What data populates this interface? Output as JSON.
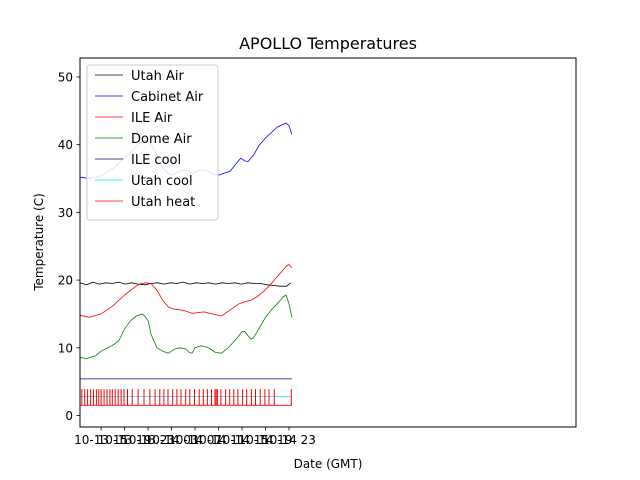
{
  "chart_data": {
    "type": "line",
    "title": "APOLLO Temperatures",
    "xlabel": "Date (GMT)",
    "ylabel": "Temperature (C)",
    "x_unit": "hours since 10-13 00:00 GMT",
    "xlim": [
      11.4,
      95.9
    ],
    "ylim": [
      -1.7,
      52.8
    ],
    "yticks": [
      0,
      10,
      20,
      30,
      40,
      50
    ],
    "xticks": [
      {
        "label": "10-13 15",
        "value": 15
      },
      {
        "label": "10-13 19",
        "value": 19
      },
      {
        "label": "10-13 23",
        "value": 23
      },
      {
        "label": "10-14 03",
        "value": 27
      },
      {
        "label": "10-14 07",
        "value": 31
      },
      {
        "label": "10-14 11",
        "value": 35
      },
      {
        "label": "10-14 15",
        "value": 39
      },
      {
        "label": "10-14 19",
        "value": 43
      },
      {
        "label": "10-14 23",
        "value": 47
      }
    ],
    "legend_position": "top-left",
    "series": [
      {
        "name": "Utah Air",
        "color": "#000000",
        "x": [
          11.4,
          12.5,
          13.6,
          14.7,
          15.8,
          16.9,
          18.0,
          19.1,
          20.2,
          21.3,
          22.4,
          23.5,
          24.6,
          25.7,
          26.8,
          27.9,
          29.0,
          30.1,
          31.2,
          32.3,
          33.4,
          34.5,
          35.6,
          36.7,
          37.8,
          38.9,
          40.0,
          41.1,
          42.2,
          43.3,
          44.4,
          45.5,
          46.6,
          47.3
        ],
        "y": [
          19.6,
          19.3,
          19.7,
          19.4,
          19.6,
          19.5,
          19.7,
          19.4,
          19.6,
          19.4,
          19.3,
          19.5,
          19.6,
          19.4,
          19.6,
          19.5,
          19.7,
          19.4,
          19.6,
          19.5,
          19.6,
          19.4,
          19.6,
          19.5,
          19.6,
          19.4,
          19.6,
          19.5,
          19.5,
          19.3,
          19.2,
          19.1,
          19.1,
          19.6
        ]
      },
      {
        "name": "Cabinet Air",
        "color": "#0000ff",
        "x": [
          11.4,
          13.0,
          15.0,
          17.0,
          19.0,
          20.5,
          21.5,
          22.5,
          23.5,
          24.5,
          25.5,
          26.5,
          27.0,
          28.0,
          29.0,
          30.0,
          30.5,
          31.0,
          32.0,
          33.0,
          34.0,
          35.0,
          36.0,
          37.0,
          38.0,
          38.8,
          39.5,
          40.0,
          41.0,
          42.0,
          43.0,
          44.0,
          45.0,
          46.0,
          46.5,
          47.0,
          47.5
        ],
        "y": [
          35.2,
          35.0,
          35.4,
          36.5,
          38.0,
          39.3,
          40.2,
          40.7,
          40.1,
          38.5,
          36.5,
          35.7,
          35.5,
          35.9,
          36.2,
          36.1,
          35.7,
          36.0,
          36.3,
          36.2,
          35.6,
          35.5,
          35.8,
          36.1,
          37.2,
          38.0,
          37.6,
          37.5,
          38.5,
          40.0,
          41.0,
          41.8,
          42.6,
          43.0,
          43.2,
          42.8,
          41.5
        ]
      },
      {
        "name": "ILE Air",
        "color": "#ff0000",
        "x": [
          11.4,
          13.0,
          15.0,
          17.0,
          19.0,
          20.5,
          21.5,
          22.5,
          23.5,
          24.5,
          25.5,
          26.5,
          27.5,
          28.5,
          29.5,
          30.5,
          31.5,
          32.5,
          33.5,
          34.5,
          35.5,
          36.5,
          37.5,
          38.5,
          39.5,
          40.5,
          41.5,
          42.5,
          43.5,
          44.5,
          45.5,
          46.5,
          47.0,
          47.5
        ],
        "y": [
          14.8,
          14.5,
          15.0,
          16.2,
          17.8,
          18.8,
          19.4,
          19.6,
          19.5,
          18.5,
          17.0,
          16.0,
          15.7,
          15.6,
          15.4,
          15.1,
          15.2,
          15.3,
          15.1,
          14.9,
          14.7,
          15.3,
          15.9,
          16.5,
          16.8,
          17.0,
          17.5,
          18.2,
          19.0,
          20.0,
          21.0,
          22.0,
          22.3,
          21.8
        ]
      },
      {
        "name": "Dome Air",
        "color": "#008000",
        "x": [
          11.4,
          12.5,
          14.0,
          15.0,
          17.0,
          18.0,
          19.0,
          20.0,
          21.0,
          22.0,
          22.5,
          23.0,
          23.5,
          24.5,
          25.5,
          26.5,
          27.5,
          28.5,
          29.5,
          30.0,
          30.5,
          31.0,
          32.0,
          33.0,
          33.5,
          34.5,
          35.5,
          36.5,
          37.5,
          38.5,
          39.0,
          39.5,
          40.0,
          40.5,
          41.0,
          42.0,
          43.0,
          44.0,
          45.0,
          46.0,
          46.5,
          47.0,
          47.5
        ],
        "y": [
          8.6,
          8.4,
          8.8,
          9.5,
          10.4,
          11.0,
          12.8,
          14.0,
          14.7,
          15.0,
          14.6,
          14.0,
          12.0,
          10.0,
          9.5,
          9.2,
          9.8,
          10.0,
          9.8,
          9.3,
          9.2,
          10.0,
          10.3,
          10.1,
          9.9,
          9.3,
          9.2,
          9.9,
          10.8,
          11.8,
          12.4,
          12.4,
          11.8,
          11.3,
          11.5,
          13.0,
          14.5,
          15.6,
          16.5,
          17.5,
          17.8,
          16.5,
          14.5
        ]
      },
      {
        "name": "ILE cool",
        "color": "#000080",
        "x": [
          11.4,
          47.5
        ],
        "y": [
          5.4,
          5.4
        ]
      },
      {
        "name": "Utah cool",
        "color": "#00e5ff",
        "x": [
          11.4,
          47.5
        ],
        "y": [
          2.8,
          2.8
        ]
      },
      {
        "name": "Utah heat",
        "color": "#ff0000",
        "x": [
          11.4,
          47.5
        ],
        "y": [
          1.5,
          1.5
        ],
        "spike_height": 2.4,
        "spike_x": [
          11.7,
          12.2,
          12.7,
          13.2,
          13.7,
          14.2,
          14.6,
          15.0,
          15.5,
          16.0,
          16.5,
          16.9,
          17.4,
          17.9,
          18.4,
          18.9,
          19.5,
          20.3,
          21.3,
          22.3,
          23.3,
          24.2,
          25.0,
          25.7,
          26.4,
          27.2,
          27.9,
          28.6,
          29.4,
          30.1,
          30.9,
          31.7,
          32.4,
          33.1,
          33.8,
          34.4,
          34.6,
          34.8,
          35.4,
          36.2,
          36.9,
          37.6,
          38.3,
          39.1,
          39.8,
          40.6,
          41.3,
          42.1,
          42.9,
          43.6,
          44.5,
          47.4
        ]
      }
    ]
  }
}
